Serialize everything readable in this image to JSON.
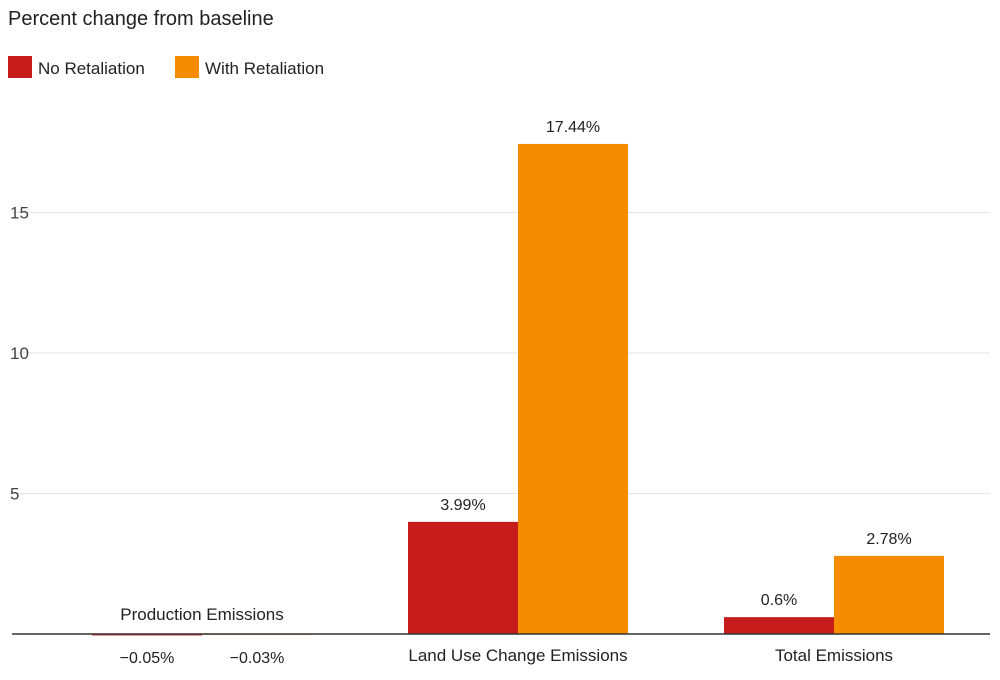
{
  "chart_data": {
    "type": "bar",
    "title": "Percent change from baseline",
    "xlabel": "",
    "ylabel": "",
    "ylim": [
      0,
      19
    ],
    "yticks": [
      5,
      10,
      15
    ],
    "grid": true,
    "legend_position": "top-left",
    "categories": [
      "Production Emissions",
      "Land Use Change Emissions",
      "Total Emissions"
    ],
    "series": [
      {
        "name": "No Retaliation",
        "color": "#c61c1c",
        "values": [
          -0.05,
          3.99,
          0.6
        ],
        "labels": [
          "−0.05%",
          "3.99%",
          "0.6%"
        ]
      },
      {
        "name": "With Retaliation",
        "color": "#f58c00",
        "values": [
          -0.03,
          17.44,
          2.78
        ],
        "labels": [
          "−0.03%",
          "17.44%",
          "2.78%"
        ]
      }
    ]
  }
}
